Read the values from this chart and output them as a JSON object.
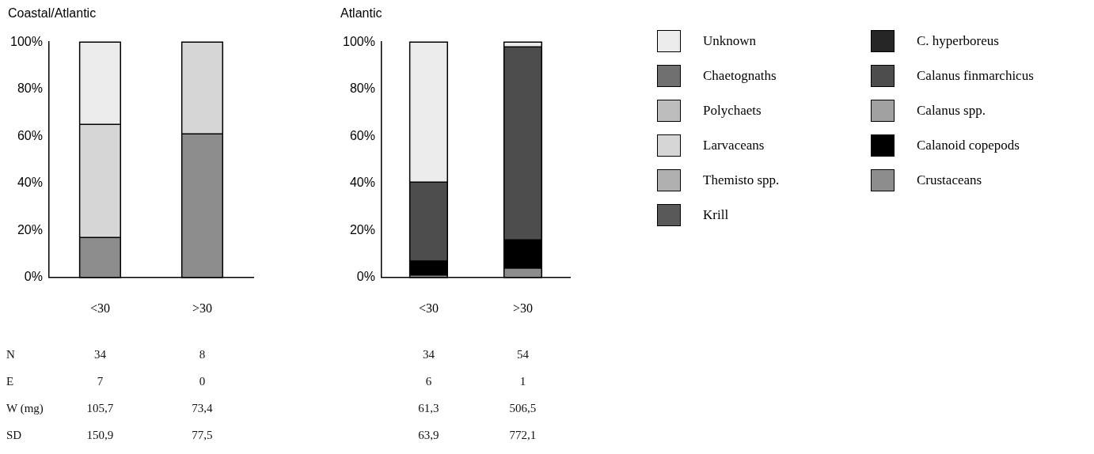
{
  "chart_data": [
    {
      "type": "bar",
      "title": "Coastal/Atlantic",
      "categories": [
        "<30",
        ">30"
      ],
      "stacked": true,
      "ylim": [
        0,
        100
      ],
      "yticks": [
        {
          "value": 0,
          "label": "0%"
        },
        {
          "value": 20,
          "label": "20%"
        },
        {
          "value": 40,
          "label": "40%"
        },
        {
          "value": 60,
          "label": "60%"
        },
        {
          "value": 80,
          "label": "80%"
        },
        {
          "value": 100,
          "label": "100%"
        }
      ],
      "grid": false,
      "legend": "right",
      "series": [
        {
          "name": "Crustaceans",
          "color": "#8c8c8c",
          "values": [
            17,
            61
          ]
        },
        {
          "name": "Calanoid copepods",
          "color": "#000000",
          "values": [
            0,
            0
          ]
        },
        {
          "name": "Calanus spp.",
          "color": "#a0a0a0",
          "values": [
            0,
            0
          ]
        },
        {
          "name": "Calanus finmarchicus",
          "color": "#4d4d4d",
          "values": [
            0,
            0
          ]
        },
        {
          "name": "C. hyperboreus",
          "color": "#262626",
          "values": [
            0,
            0
          ]
        },
        {
          "name": "Krill",
          "color": "#595959",
          "values": [
            0,
            0
          ]
        },
        {
          "name": "Themisto spp.",
          "color": "#b0b0b0",
          "values": [
            0,
            0
          ]
        },
        {
          "name": "Larvaceans",
          "color": "#d6d6d6",
          "values": [
            48,
            39
          ]
        },
        {
          "name": "Polychaets",
          "color": "#bdbdbd",
          "values": [
            0,
            0
          ]
        },
        {
          "name": "Chaetognaths",
          "color": "#707070",
          "values": [
            0,
            0
          ]
        },
        {
          "name": "Unknown",
          "color": "#ebebeb",
          "values": [
            35,
            0
          ]
        }
      ],
      "annotations": [
        "N",
        "34",
        "8",
        "E",
        "7",
        "0",
        "W  (mg)",
        "105,7",
        "73,4",
        "SD",
        "150,9",
        "77,5"
      ]
    },
    {
      "type": "bar",
      "title": "Atlantic",
      "categories": [
        "<30",
        ">30"
      ],
      "stacked": true,
      "ylim": [
        0,
        100
      ],
      "yticks": [
        {
          "value": 0,
          "label": "0%"
        },
        {
          "value": 20,
          "label": "20%"
        },
        {
          "value": 40,
          "label": "40%"
        },
        {
          "value": 60,
          "label": "60%"
        },
        {
          "value": 80,
          "label": "80%"
        },
        {
          "value": 100,
          "label": "100%"
        }
      ],
      "grid": false,
      "series": [
        {
          "color": "#8c8c8c",
          "values": [
            1,
            4
          ]
        },
        {
          "color": "#000000",
          "values": [
            6,
            12
          ]
        },
        {
          "color": "#4d4d4d",
          "values": [
            33.5,
            82
          ]
        },
        {
          "color": "#ebebeb",
          "values": [
            59.5,
            2
          ]
        }
      ],
      "annotations": [
        "34",
        "54",
        "6",
        "1",
        "61,3",
        "506,5",
        "63,9",
        "772,1"
      ]
    }
  ]
}
